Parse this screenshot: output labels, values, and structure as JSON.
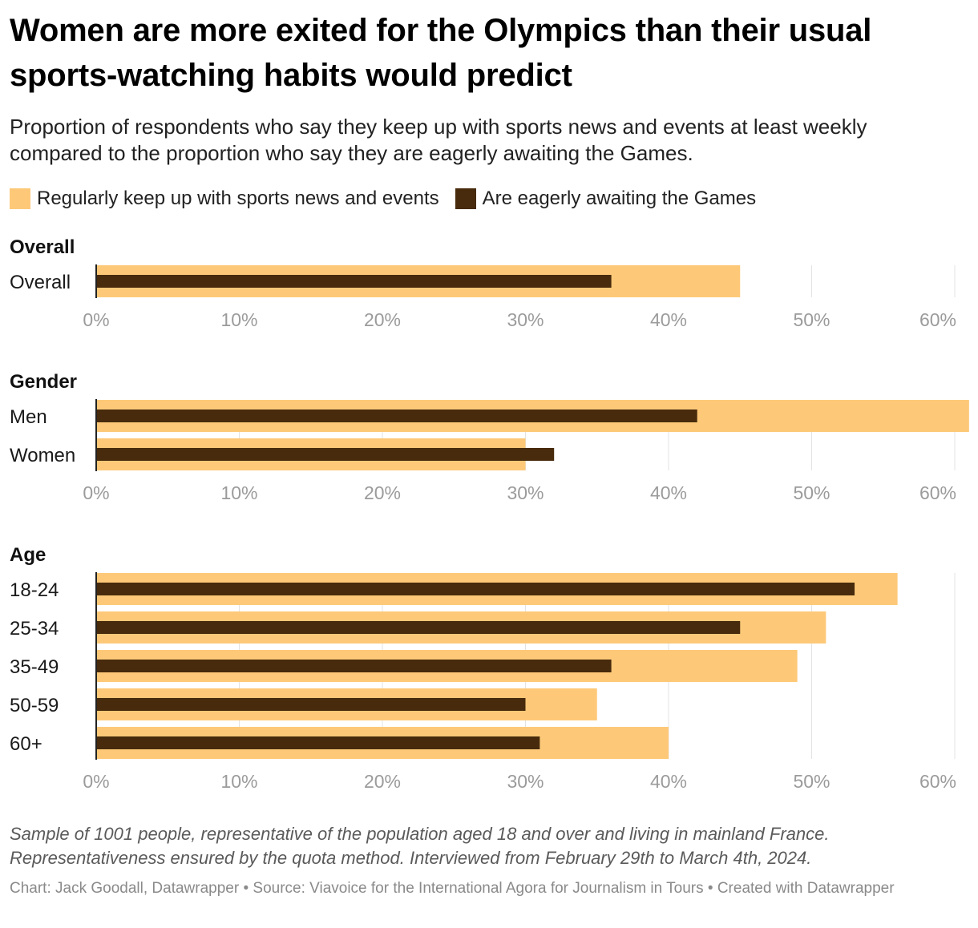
{
  "header": {
    "title": "Women are more exited for the Olympics than their usual sports-watching habits would predict",
    "subtitle": "Proportion of respondents who say they keep up with sports news and events at least weekly compared to the proportion who say they are eagerly awaiting the Games."
  },
  "legend": [
    {
      "label": "Regularly keep up with sports news and events",
      "color": "#fdc979"
    },
    {
      "label": "Are eagerly awaiting the Games",
      "color": "#472b0c"
    }
  ],
  "chart_data": {
    "type": "bar",
    "orientation": "horizontal",
    "value_format": "percent",
    "xlim": [
      0,
      61
    ],
    "ticks": [
      0,
      10,
      20,
      30,
      40,
      50,
      60
    ],
    "tick_labels": [
      "0%",
      "10%",
      "20%",
      "30%",
      "40%",
      "50%",
      "60%"
    ],
    "grid": true,
    "legend_position": "top-left",
    "series": [
      {
        "name": "Regularly keep up with sports news and events",
        "color": "#fdc979"
      },
      {
        "name": "Are eagerly awaiting the Games",
        "color": "#472b0c"
      }
    ],
    "panels": [
      {
        "title": "Overall",
        "rows": [
          {
            "label": "Overall",
            "values": [
              45,
              36
            ]
          }
        ]
      },
      {
        "title": "Gender",
        "rows": [
          {
            "label": "Men",
            "values": [
              61,
              42
            ]
          },
          {
            "label": "Women",
            "values": [
              30,
              32
            ]
          }
        ]
      },
      {
        "title": "Age",
        "rows": [
          {
            "label": "18-24",
            "values": [
              56,
              53
            ]
          },
          {
            "label": "25-34",
            "values": [
              51,
              45
            ]
          },
          {
            "label": "35-49",
            "values": [
              49,
              36
            ]
          },
          {
            "label": "50-59",
            "values": [
              35,
              30
            ]
          },
          {
            "label": "60+",
            "values": [
              40,
              31
            ]
          }
        ]
      }
    ]
  },
  "footer": {
    "notes": "Sample of 1001 people, representative of the population aged 18 and over and living in mainland France. Representativeness ensured by the quota method. Interviewed from February 29th to March 4th, 2024.",
    "credits": "Chart: Jack Goodall, Datawrapper • Source: Viavoice for the International Agora for Journalism in Tours • Created with Datawrapper"
  }
}
